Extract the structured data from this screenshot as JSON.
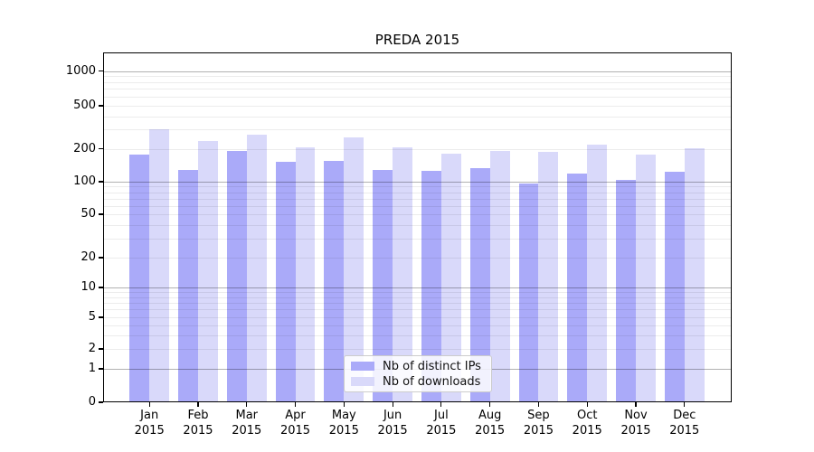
{
  "title": "PREDA 2015",
  "chart_data": {
    "type": "bar",
    "title": "PREDA 2015",
    "categories": [
      "Jan 2015",
      "Feb 2015",
      "Mar 2015",
      "Apr 2015",
      "May 2015",
      "Jun 2015",
      "Jul 2015",
      "Aug 2015",
      "Sep 2015",
      "Oct 2015",
      "Nov 2015",
      "Dec 2015"
    ],
    "series": [
      {
        "name": "Nb of distinct IPs",
        "color": "#aaaaf9",
        "values": [
          176,
          128,
          191,
          151,
          156,
          127,
          125,
          132,
          97,
          119,
          103,
          123
        ]
      },
      {
        "name": "Nb of downloads",
        "color": "#d9d9fa",
        "values": [
          305,
          236,
          271,
          206,
          255,
          206,
          180,
          189,
          186,
          217,
          176,
          201
        ]
      }
    ],
    "xlabel": "",
    "ylabel": "",
    "yscale": "symlog",
    "yticks": [
      0,
      1,
      2,
      5,
      10,
      20,
      50,
      100,
      200,
      500,
      1000
    ],
    "ylim": [
      0,
      1400
    ],
    "grid": true,
    "legend_position": "lower center"
  }
}
